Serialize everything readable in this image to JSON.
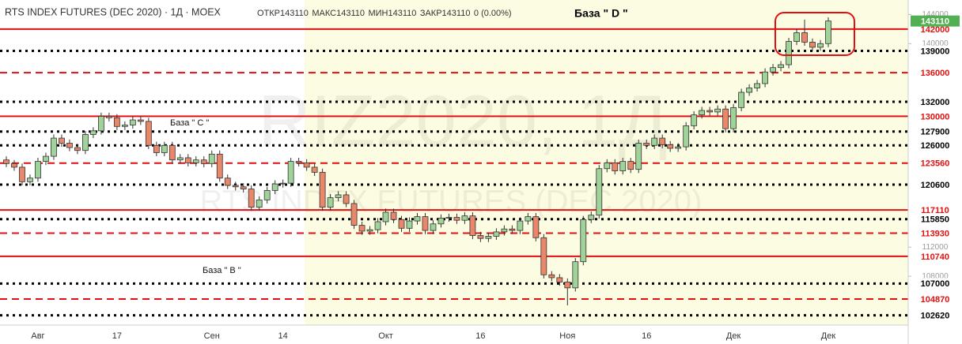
{
  "chart_data": {
    "type": "candlestick",
    "title": "RTS INDEX FUTURES (DEC 2020) · 1Д · MOEX",
    "stats": [
      {
        "label": "ОТКР",
        "value": 143110
      },
      {
        "label": "МАКС",
        "value": 143110
      },
      {
        "label": "МИН",
        "value": 143110
      },
      {
        "label": "ЗАКР",
        "value": 143110
      }
    ],
    "change": "0 (0.00%)",
    "watermark": [
      "RIZ2020, 1Д",
      "RTS INDEX FUTURES (DEC 2020)"
    ],
    "annotations": [
      "База  \" D \"",
      "База  \" C \"",
      "База  \" В \""
    ],
    "up_color": "#9fd39a",
    "down_color": "#e8876a",
    "categories": [
      null,
      null,
      null,
      null,
      "Авг",
      null,
      null,
      null,
      null,
      null,
      null,
      null,
      null,
      null,
      "17",
      null,
      null,
      null,
      null,
      null,
      null,
      null,
      null,
      null,
      null,
      null,
      "Сен",
      null,
      null,
      null,
      null,
      null,
      null,
      null,
      null,
      "14",
      null,
      null,
      null,
      null,
      null,
      null,
      null,
      null,
      null,
      null,
      null,
      null,
      "Окт",
      null,
      null,
      null,
      null,
      null,
      null,
      null,
      null,
      null,
      null,
      null,
      "16",
      null,
      null,
      null,
      null,
      null,
      null,
      null,
      null,
      null,
      null,
      "Ноя",
      null,
      null,
      null,
      null,
      null,
      null,
      null,
      null,
      null,
      "16",
      null,
      null,
      null,
      null,
      null,
      null,
      null,
      null,
      null,
      null,
      "Дек",
      null,
      null,
      null,
      null,
      null,
      null,
      null,
      null,
      null,
      null,
      null,
      "Дек"
    ],
    "open": [
      124000,
      123500,
      123000,
      121000,
      121500,
      123800,
      124500,
      127000,
      126300,
      125700,
      125300,
      127500,
      128000,
      130000,
      129800,
      128600,
      128800,
      129500,
      129300,
      126000,
      125000,
      126000,
      124000,
      124300,
      123600,
      124000,
      123500,
      124800,
      121500,
      120500,
      120300,
      120000,
      117500,
      118500,
      119800,
      120700,
      120800,
      123800,
      123600,
      123000,
      122300,
      117500,
      118800,
      119200,
      118000,
      115000,
      114200,
      114400,
      115500,
      116800,
      115800,
      114600,
      115600,
      116200,
      114300,
      115200,
      116000,
      116100,
      115700,
      116300,
      113600,
      113200,
      113500,
      114100,
      114500,
      114300,
      115600,
      116200,
      113300,
      108200,
      107800,
      107200,
      106400,
      110000,
      115800,
      116400,
      122800,
      123600,
      122500,
      123800,
      122700,
      126300,
      126000,
      127000,
      126100,
      125600,
      125800,
      128700,
      130200,
      130800,
      130600,
      131000,
      128300,
      131200,
      133300,
      133900,
      134500,
      136100,
      136700,
      137100,
      140300,
      141500,
      140200,
      139500,
      140000
    ],
    "high": [
      124500,
      124000,
      123500,
      122000,
      124300,
      125000,
      127500,
      127500,
      126800,
      126200,
      128000,
      128500,
      130500,
      130500,
      130300,
      129300,
      130000,
      130000,
      129800,
      126500,
      126500,
      126500,
      124800,
      124800,
      124500,
      124500,
      125300,
      125300,
      122000,
      121000,
      120800,
      120500,
      119000,
      120300,
      121200,
      121300,
      124300,
      124300,
      124100,
      123500,
      122800,
      119300,
      119700,
      119700,
      118500,
      115500,
      114900,
      116000,
      117300,
      117300,
      116300,
      116100,
      116700,
      116700,
      115700,
      116500,
      116600,
      116600,
      116800,
      116800,
      114100,
      114000,
      114600,
      115000,
      115000,
      116100,
      116700,
      116700,
      113800,
      108700,
      108300,
      107700,
      110500,
      116300,
      116900,
      123300,
      124100,
      124100,
      124300,
      124300,
      126800,
      126800,
      127500,
      127500,
      126600,
      126300,
      129200,
      130700,
      131300,
      131300,
      131500,
      131500,
      131700,
      133800,
      134400,
      135000,
      136600,
      137200,
      137600,
      140800,
      142000,
      143300,
      140700,
      140500,
      143610
    ],
    "low": [
      123000,
      122500,
      120500,
      120500,
      121000,
      123300,
      124000,
      125800,
      125200,
      124800,
      124800,
      127000,
      127500,
      129300,
      128100,
      128100,
      128300,
      128800,
      125500,
      124500,
      124500,
      123500,
      123500,
      123100,
      123100,
      123000,
      123000,
      121000,
      120000,
      119800,
      119500,
      117000,
      117000,
      118000,
      119300,
      120200,
      120300,
      123100,
      122500,
      121800,
      117000,
      117000,
      118300,
      117500,
      114500,
      113700,
      113700,
      113900,
      115000,
      115300,
      114100,
      114100,
      115100,
      113800,
      113800,
      114700,
      115500,
      115200,
      115200,
      113100,
      112700,
      112700,
      113000,
      113600,
      113800,
      113800,
      115100,
      112800,
      107700,
      107300,
      106700,
      104000,
      105900,
      109500,
      115300,
      115900,
      122300,
      122000,
      122000,
      122200,
      122200,
      125500,
      125500,
      125600,
      125100,
      125100,
      125300,
      128200,
      129700,
      130100,
      130100,
      127800,
      127800,
      130700,
      132800,
      133400,
      134000,
      135600,
      136200,
      136600,
      139800,
      139700,
      139000,
      139000,
      139500
    ],
    "close": [
      123500,
      123000,
      121000,
      121500,
      123800,
      124500,
      127000,
      126300,
      125700,
      125300,
      127500,
      128000,
      130000,
      129800,
      128600,
      128800,
      129500,
      129300,
      126000,
      125000,
      126000,
      124000,
      124300,
      123600,
      124000,
      123500,
      124800,
      121500,
      120500,
      120300,
      120000,
      117500,
      118500,
      119800,
      120700,
      120800,
      123800,
      123600,
      123000,
      122300,
      117500,
      118800,
      119200,
      118000,
      115000,
      114200,
      114400,
      115500,
      116800,
      115800,
      114600,
      115600,
      116200,
      114300,
      115200,
      116000,
      116100,
      115700,
      116300,
      113600,
      113200,
      113500,
      114100,
      114500,
      114300,
      115600,
      116200,
      113300,
      108200,
      107800,
      107200,
      106400,
      110000,
      115800,
      116400,
      122800,
      123600,
      122500,
      123800,
      122700,
      126300,
      126000,
      127000,
      126100,
      125600,
      125800,
      128700,
      130200,
      130800,
      130600,
      131000,
      128300,
      131200,
      133300,
      133900,
      134500,
      136100,
      136700,
      137100,
      140300,
      141500,
      140200,
      139500,
      140000,
      143110
    ],
    "ylim": [
      101500,
      146000
    ],
    "yticks": [
      108000,
      112000,
      140000,
      144000
    ],
    "last_price": {
      "value": 143110,
      "color": "#52b052"
    },
    "levels": [
      {
        "value": 142000,
        "style": "solid",
        "color": "#e01010"
      },
      {
        "value": 139000,
        "style": "dotted",
        "color": "#000000"
      },
      {
        "value": 136000,
        "style": "dashed",
        "color": "#e01010"
      },
      {
        "value": 132000,
        "style": "dotted",
        "color": "#000000"
      },
      {
        "value": 130000,
        "style": "solid",
        "color": "#e01010"
      },
      {
        "value": 127900,
        "style": "dotted",
        "color": "#000000"
      },
      {
        "value": 126000,
        "style": "dotted",
        "color": "#000000"
      },
      {
        "value": 123560,
        "style": "dashed",
        "color": "#e01010"
      },
      {
        "value": 120600,
        "style": "dotted",
        "color": "#000000"
      },
      {
        "value": 117110,
        "style": "solid",
        "color": "#e01010"
      },
      {
        "value": 115850,
        "style": "dotted",
        "color": "#000000"
      },
      {
        "value": 113930,
        "style": "dashed",
        "color": "#e01010"
      },
      {
        "value": 110740,
        "style": "solid",
        "color": "#e01010"
      },
      {
        "value": 107000,
        "style": "dotted",
        "color": "#000000"
      },
      {
        "value": 104870,
        "style": "dashed",
        "color": "#e01010"
      },
      {
        "value": 102620,
        "style": "dotted",
        "color": "#000000"
      }
    ]
  }
}
